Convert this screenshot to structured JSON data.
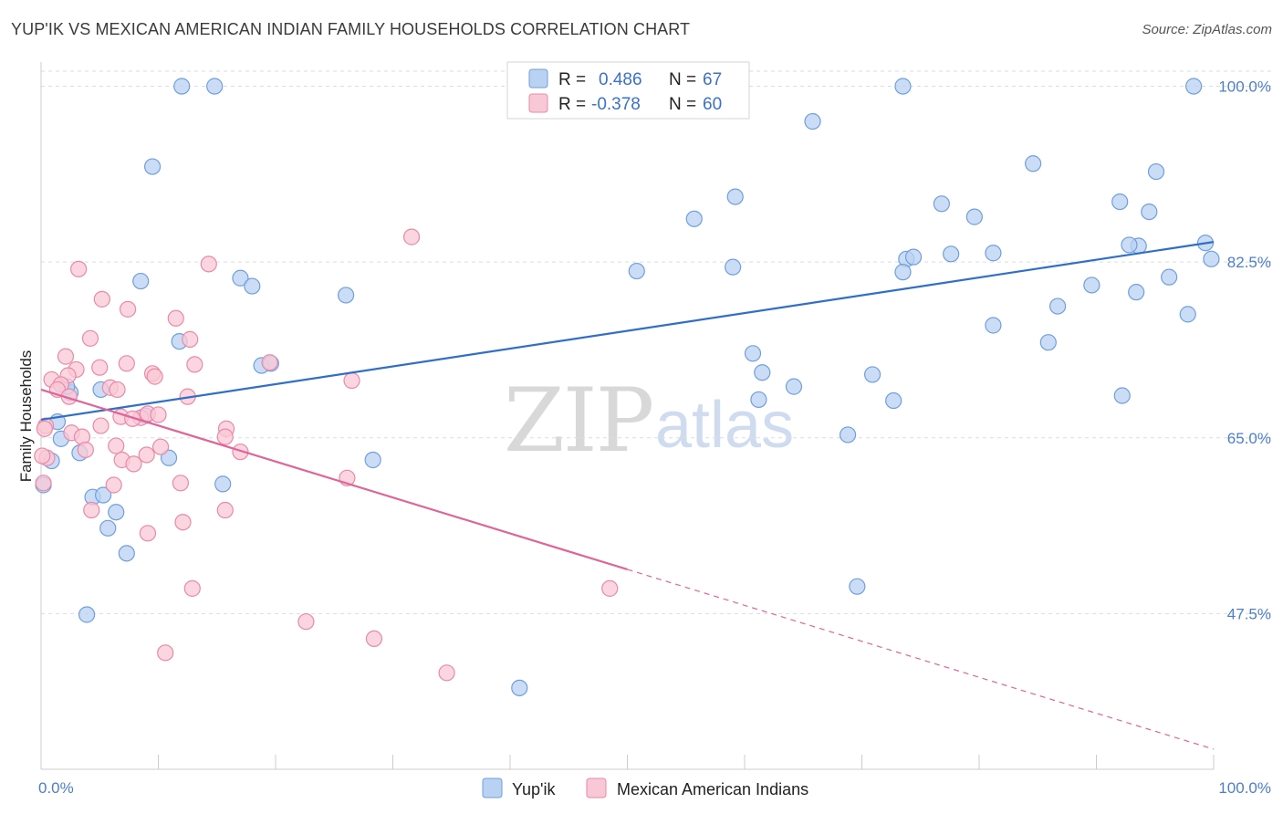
{
  "title": "YUP'IK VS MEXICAN AMERICAN INDIAN FAMILY HOUSEHOLDS CORRELATION CHART",
  "source": "Source: ZipAtlas.com",
  "watermark": {
    "zip": "ZIP",
    "atlas": "atlas"
  },
  "colors": {
    "blue_fill": "#b9d2f3",
    "blue_stroke": "#6f9fdc",
    "blue_line": "#2f6fc8",
    "pink_fill": "#f9c8d6",
    "pink_stroke": "#e98aa8",
    "pink_line": "#e0649a",
    "axis_text": "#4a7fd1",
    "grid": "#dddddd"
  },
  "legend": {
    "rows": [
      {
        "r_label": "R =",
        "r_value": "0.486",
        "n_label": "N =",
        "n_value": "67"
      },
      {
        "r_label": "R =",
        "r_value": "-0.378",
        "n_label": "N =",
        "n_value": "60"
      }
    ]
  },
  "bottom_legend": [
    "Yup'ik",
    "Mexican American Indians"
  ],
  "chart_data": {
    "type": "scatter",
    "title": "YUP'IK VS MEXICAN AMERICAN INDIAN FAMILY HOUSEHOLDS CORRELATION CHART",
    "xlabel": "",
    "ylabel": "Family Households",
    "xlim": [
      0,
      100
    ],
    "ylim": [
      32,
      101.5
    ],
    "x_tick_labels": [
      "0.0%",
      "100.0%"
    ],
    "y_ticks": [
      47.5,
      65.0,
      82.5,
      100.0
    ],
    "y_tick_labels": [
      "47.5%",
      "65.0%",
      "82.5%",
      "100.0%"
    ],
    "series": [
      {
        "name": "Yup'ik",
        "r": 0.486,
        "n": 67,
        "trend": {
          "x0": 0,
          "y0": 66.8,
          "x1": 100,
          "y1": 84.5
        },
        "points": [
          [
            12.0,
            100.0
          ],
          [
            14.8,
            100.0
          ],
          [
            73.5,
            100.0
          ],
          [
            98.3,
            100.0
          ],
          [
            65.8,
            96.5
          ],
          [
            9.5,
            92.0
          ],
          [
            84.6,
            92.3
          ],
          [
            95.1,
            91.5
          ],
          [
            59.2,
            89.0
          ],
          [
            76.8,
            88.3
          ],
          [
            94.5,
            87.5
          ],
          [
            92.0,
            88.5
          ],
          [
            55.7,
            86.8
          ],
          [
            79.6,
            87.0
          ],
          [
            99.3,
            84.4
          ],
          [
            77.6,
            83.3
          ],
          [
            81.2,
            83.4
          ],
          [
            73.8,
            82.8
          ],
          [
            74.4,
            83.0
          ],
          [
            93.6,
            84.1
          ],
          [
            92.8,
            84.2
          ],
          [
            99.8,
            82.8
          ],
          [
            50.8,
            81.6
          ],
          [
            59.0,
            82.0
          ],
          [
            73.5,
            81.5
          ],
          [
            96.2,
            81.0
          ],
          [
            8.5,
            80.6
          ],
          [
            17.0,
            80.9
          ],
          [
            18.0,
            80.1
          ],
          [
            26.0,
            79.2
          ],
          [
            89.6,
            80.2
          ],
          [
            86.7,
            78.1
          ],
          [
            93.4,
            79.5
          ],
          [
            97.8,
            77.3
          ],
          [
            81.2,
            76.2
          ],
          [
            85.9,
            74.5
          ],
          [
            11.8,
            74.6
          ],
          [
            18.8,
            72.2
          ],
          [
            19.6,
            72.4
          ],
          [
            60.7,
            73.4
          ],
          [
            61.5,
            71.5
          ],
          [
            70.9,
            71.3
          ],
          [
            64.2,
            70.1
          ],
          [
            92.2,
            69.2
          ],
          [
            2.5,
            69.5
          ],
          [
            5.1,
            69.8
          ],
          [
            61.2,
            68.8
          ],
          [
            72.7,
            68.7
          ],
          [
            2.2,
            70.1
          ],
          [
            8.9,
            67.2
          ],
          [
            1.4,
            66.6
          ],
          [
            1.7,
            64.9
          ],
          [
            68.8,
            65.3
          ],
          [
            3.3,
            63.5
          ],
          [
            10.9,
            63.0
          ],
          [
            0.9,
            62.7
          ],
          [
            28.3,
            62.8
          ],
          [
            0.2,
            60.3
          ],
          [
            4.4,
            59.1
          ],
          [
            5.3,
            59.3
          ],
          [
            15.5,
            60.4
          ],
          [
            6.4,
            57.6
          ],
          [
            5.7,
            56.0
          ],
          [
            7.3,
            53.5
          ],
          [
            69.6,
            50.2
          ],
          [
            3.9,
            47.4
          ],
          [
            40.8,
            40.1
          ]
        ]
      },
      {
        "name": "Mexican American Indians",
        "r": -0.378,
        "n": 60,
        "trend": {
          "x0": 0,
          "y0": 69.8,
          "x1": 100,
          "y1": 34.0,
          "solid_until_x": 50
        },
        "points": [
          [
            31.6,
            85.0
          ],
          [
            14.3,
            82.3
          ],
          [
            3.2,
            81.8
          ],
          [
            5.2,
            78.8
          ],
          [
            7.4,
            77.8
          ],
          [
            11.5,
            76.9
          ],
          [
            4.2,
            74.9
          ],
          [
            12.7,
            74.8
          ],
          [
            2.1,
            73.1
          ],
          [
            7.3,
            72.4
          ],
          [
            13.1,
            72.3
          ],
          [
            19.5,
            72.5
          ],
          [
            3.0,
            71.8
          ],
          [
            5.0,
            72.0
          ],
          [
            2.3,
            71.2
          ],
          [
            9.5,
            71.4
          ],
          [
            9.7,
            71.1
          ],
          [
            0.9,
            70.8
          ],
          [
            26.5,
            70.7
          ],
          [
            1.7,
            70.3
          ],
          [
            1.4,
            69.8
          ],
          [
            5.9,
            70.0
          ],
          [
            6.5,
            69.8
          ],
          [
            2.4,
            69.1
          ],
          [
            12.5,
            69.1
          ],
          [
            0.4,
            66.2
          ],
          [
            6.8,
            67.1
          ],
          [
            8.5,
            67.0
          ],
          [
            9.1,
            67.4
          ],
          [
            10.0,
            67.3
          ],
          [
            7.8,
            66.9
          ],
          [
            5.1,
            66.2
          ],
          [
            15.8,
            65.9
          ],
          [
            0.3,
            65.9
          ],
          [
            2.6,
            65.5
          ],
          [
            3.5,
            65.1
          ],
          [
            15.7,
            65.1
          ],
          [
            6.4,
            64.2
          ],
          [
            10.2,
            64.1
          ],
          [
            3.8,
            63.8
          ],
          [
            17.0,
            63.6
          ],
          [
            0.5,
            63.0
          ],
          [
            9.0,
            63.3
          ],
          [
            6.9,
            62.8
          ],
          [
            7.9,
            62.4
          ],
          [
            26.1,
            61.0
          ],
          [
            11.9,
            60.5
          ],
          [
            6.2,
            60.3
          ],
          [
            0.2,
            60.5
          ],
          [
            4.3,
            57.8
          ],
          [
            15.7,
            57.8
          ],
          [
            12.1,
            56.6
          ],
          [
            9.1,
            55.5
          ],
          [
            12.9,
            50.0
          ],
          [
            48.5,
            50.0
          ],
          [
            22.6,
            46.7
          ],
          [
            28.4,
            45.0
          ],
          [
            10.6,
            43.6
          ],
          [
            34.6,
            41.6
          ],
          [
            0.1,
            63.2
          ]
        ]
      }
    ]
  }
}
